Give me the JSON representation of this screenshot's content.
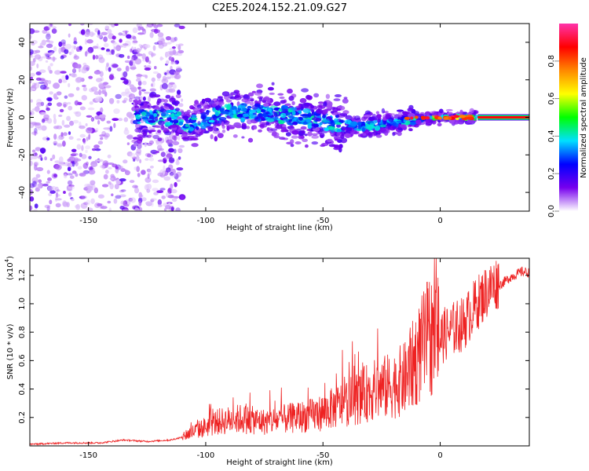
{
  "title": "C2E5.2024.152.21.09.G27",
  "chart_data": [
    {
      "type": "heatmap",
      "xlabel": "Height of straight line (km)",
      "ylabel": "Frequency (Hz)",
      "xlim": [
        -175,
        38
      ],
      "ylim": [
        -50,
        50
      ],
      "xticks": [
        -150,
        -100,
        -50,
        0
      ],
      "yticks": [
        -40,
        -20,
        0,
        20,
        40
      ],
      "colorbar": {
        "label": "Normalized spectral amplitude",
        "range": [
          0,
          1
        ],
        "ticks": [
          "0.0",
          "0.2",
          "0.4",
          "0.6",
          "0.8"
        ],
        "colors": [
          "#ffffff",
          "#7700ee",
          "#0000ff",
          "#00e0ff",
          "#00ff00",
          "#ffff00",
          "#ff8800",
          "#ff0000",
          "#ff33aa"
        ]
      },
      "features": {
        "noise_region_x": [
          -175,
          -110
        ],
        "ridge": [
          {
            "x": -110,
            "y": -5
          },
          {
            "x": -90,
            "y": 3
          },
          {
            "x": -70,
            "y": 2
          },
          {
            "x": -50,
            "y": -2
          },
          {
            "x": -35,
            "y": -5
          },
          {
            "x": -20,
            "y": -3
          },
          {
            "x": -10,
            "y": -1
          },
          {
            "x": 0,
            "y": 0
          },
          {
            "x": 20,
            "y": 0
          },
          {
            "x": 38,
            "y": 0
          }
        ],
        "strong_line_x": [
          16,
          38
        ]
      }
    },
    {
      "type": "line",
      "xlabel": "Height of straight line (km)",
      "ylabel": "SNR (10 * v/v)",
      "yscale_label": "(x10",
      "yscale_exp": "4",
      "xlim": [
        -175,
        38
      ],
      "ylim": [
        0.0,
        1.32
      ],
      "xticks": [
        -150,
        -100,
        -50,
        0
      ],
      "yticks": [
        "0.2",
        "0.4",
        "0.6",
        "0.8",
        "1.0",
        "1.2"
      ],
      "color": "#ee2222",
      "series": [
        {
          "x": [
            -175,
            -160,
            -145,
            -135,
            -125,
            -115,
            -110,
            -105,
            -100,
            -95,
            -90,
            -85,
            -80,
            -75,
            -70,
            -65,
            -60,
            -55,
            -50,
            -45,
            -40,
            -35,
            -30,
            -25,
            -20,
            -15,
            -10,
            -5,
            0,
            5,
            10,
            15,
            20,
            25,
            30,
            35,
            38
          ],
          "values": [
            0.01,
            0.02,
            0.02,
            0.04,
            0.03,
            0.04,
            0.06,
            0.09,
            0.12,
            0.15,
            0.16,
            0.17,
            0.16,
            0.15,
            0.16,
            0.17,
            0.18,
            0.19,
            0.21,
            0.24,
            0.27,
            0.3,
            0.34,
            0.36,
            0.38,
            0.42,
            0.55,
            0.68,
            0.72,
            0.78,
            0.82,
            0.95,
            1.05,
            1.12,
            1.18,
            1.22,
            1.21
          ]
        }
      ]
    }
  ]
}
